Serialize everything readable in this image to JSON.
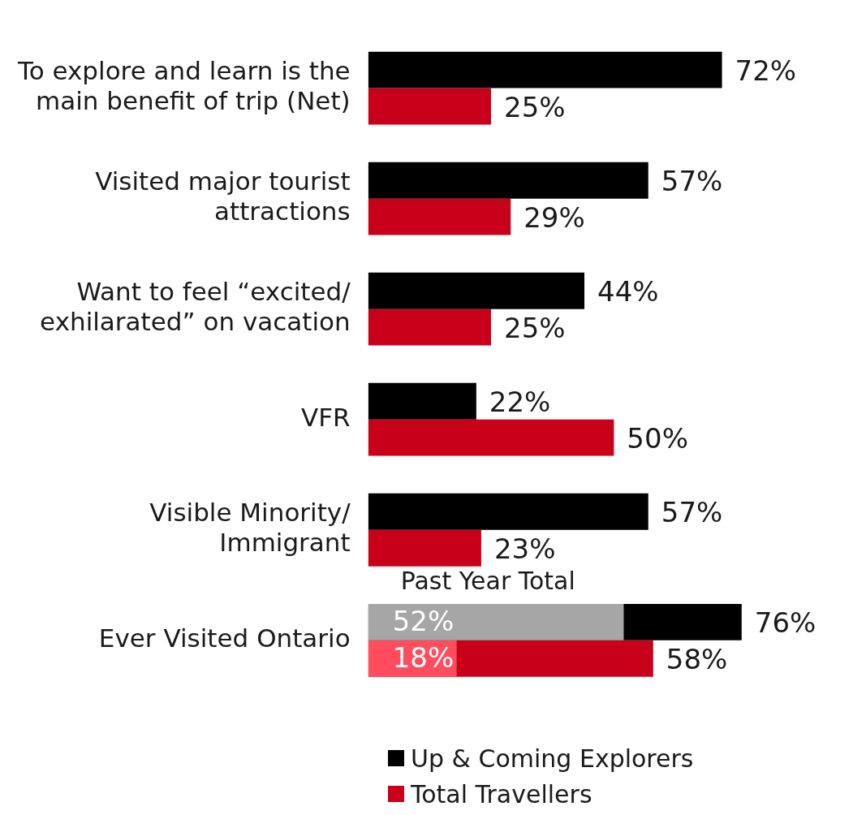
{
  "chart_data": {
    "type": "bar",
    "orientation": "horizontal",
    "categories": [
      "To explore and learn is the\nmain benefit of trip (Net)",
      "Visited major tourist\nattractions",
      "Want to feel “excited/\nexhilarated” on vacation",
      "VFR",
      "Visible Minority/\nImmigrant",
      "Ever Visited Ontario"
    ],
    "series": [
      {
        "name": "Up & Coming Explorers",
        "color": "#000000",
        "values": [
          72,
          57,
          44,
          22,
          57,
          76
        ],
        "value_labels": [
          "72%",
          "57%",
          "44%",
          "22%",
          "57%",
          "76%"
        ]
      },
      {
        "name": "Total Travellers",
        "color": "#c8001a",
        "values": [
          25,
          29,
          25,
          50,
          23,
          58
        ],
        "value_labels": [
          "25%",
          "29%",
          "25%",
          "50%",
          "23%",
          "58%"
        ]
      },
      {
        "color": "#a6a6a6",
        "values": [
          null,
          null,
          null,
          null,
          null,
          52
        ],
        "value_labels": [
          null,
          null,
          null,
          null,
          null,
          "52%"
        ]
      },
      {
        "color": "#ff4d5e",
        "values": [
          null,
          null,
          null,
          null,
          null,
          18
        ],
        "value_labels": [
          null,
          null,
          null,
          null,
          null,
          "18%"
        ]
      }
    ],
    "annotations": [
      "Past Year Total"
    ],
    "legend": "bottom",
    "grid": false,
    "tick_labels": "y"
  }
}
